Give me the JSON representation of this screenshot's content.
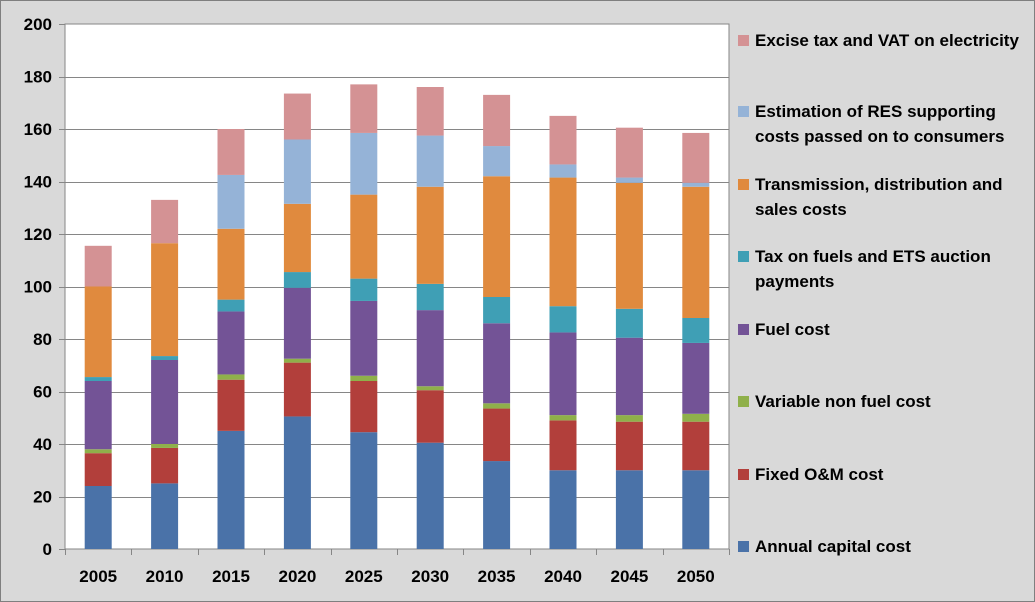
{
  "chart_data": {
    "type": "bar",
    "stacked": true,
    "categories": [
      "2005",
      "2010",
      "2015",
      "2020",
      "2025",
      "2030",
      "2035",
      "2040",
      "2045",
      "2050"
    ],
    "ylim": [
      0,
      200
    ],
    "yticks": [
      0,
      20,
      40,
      60,
      80,
      100,
      120,
      140,
      160,
      180,
      200
    ],
    "grid": true,
    "legend_position": "right",
    "series": [
      {
        "name": "Annual capital cost",
        "color": "#4a72a8",
        "values": [
          24,
          25,
          45,
          50.5,
          44.5,
          40.5,
          33.5,
          30,
          30,
          30
        ]
      },
      {
        "name": "Fixed O&M cost",
        "color": "#b23f3b",
        "values": [
          12.5,
          13.5,
          19.5,
          20.5,
          19.5,
          20,
          20,
          19,
          18.5,
          18.5
        ]
      },
      {
        "name": "Variable non fuel cost",
        "color": "#8fb04a",
        "values": [
          1.5,
          1.5,
          2,
          1.5,
          2,
          1.5,
          2,
          2,
          2.5,
          3
        ]
      },
      {
        "name": "Fuel cost",
        "color": "#735396",
        "values": [
          26,
          32,
          24,
          27,
          28.5,
          29,
          30.5,
          31.5,
          29.5,
          27
        ]
      },
      {
        "name": "Tax on fuels and ETS auction payments",
        "color": "#3f9fb5",
        "values": [
          1.5,
          1.5,
          4.5,
          6,
          8.5,
          10,
          10,
          10,
          11,
          9.5
        ]
      },
      {
        "name": "Transmission, distribution and sales costs",
        "color": "#e08a3e",
        "values": [
          34.5,
          43,
          27,
          26,
          32,
          37,
          46,
          49,
          48,
          50
        ]
      },
      {
        "name": "Estimation of RES supporting costs passed on to consumers",
        "color": "#95b3d7",
        "values": [
          0,
          0,
          20.5,
          24.5,
          23.5,
          19.5,
          11.5,
          5,
          2,
          1.5
        ]
      },
      {
        "name": "Excise tax and VAT on electricity",
        "color": "#d49294",
        "values": [
          15.5,
          16.5,
          17.5,
          17.5,
          18.5,
          18.5,
          19.5,
          18.5,
          19,
          19
        ]
      }
    ]
  }
}
